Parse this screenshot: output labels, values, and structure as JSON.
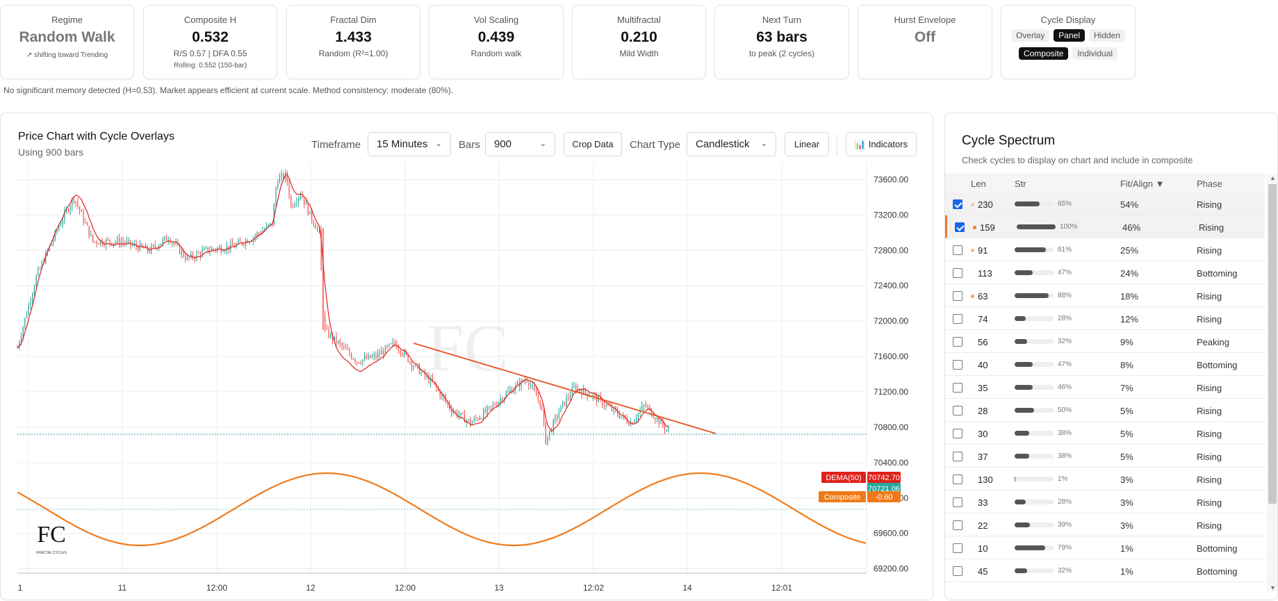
{
  "stats": {
    "regime": {
      "label": "Regime",
      "value": "Random Walk",
      "sub": "↗ shifting toward Trending"
    },
    "composite_h": {
      "label": "Composite H",
      "value": "0.532",
      "sub": "R/S 0.57 | DFA 0.55",
      "sub2": "Rolling: 0.552 (150-bar)"
    },
    "fractal_dim": {
      "label": "Fractal Dim",
      "value": "1.433",
      "sub": "Random (R²=1.00)"
    },
    "vol_scaling": {
      "label": "Vol Scaling",
      "value": "0.439",
      "sub": "Random walk"
    },
    "multifractal": {
      "label": "Multifractal",
      "value": "0.210",
      "sub": "Mild Width"
    },
    "next_turn": {
      "label": "Next Turn",
      "value": "63 bars",
      "sub": "to peak (2 cycles)"
    },
    "hurst_envelope": {
      "label": "Hurst Envelope",
      "value": "Off"
    },
    "cycle_display": {
      "label": "Cycle Display",
      "modes": [
        "Overlay",
        "Panel",
        "Hidden"
      ],
      "active_mode": "Panel",
      "types": [
        "Composite",
        "Individual"
      ],
      "active_type": "Composite"
    }
  },
  "note": "No significant memory detected (H=0.53). Market appears efficient at current scale. Method consistency: moderate (80%).",
  "chart_panel": {
    "title": "Price Chart with Cycle Overlays",
    "subtitle": "Using 900 bars",
    "timeframe_label": "Timeframe",
    "timeframe_value": "15 Minutes",
    "bars_label": "Bars",
    "bars_value": "900",
    "crop_label": "Crop Data",
    "chart_type_label": "Chart Type",
    "chart_type_value": "Candlestick",
    "scale_label": "Linear",
    "indicators_label": "📊 Indicators"
  },
  "chart_data": {
    "type": "candlestick",
    "x_tick_labels": [
      "1",
      "11",
      "12:00",
      "12",
      "12:00",
      "13",
      "12:02",
      "14",
      "12:01"
    ],
    "y_ticks": [
      73600,
      73200,
      72800,
      72400,
      72000,
      71600,
      71200,
      70800,
      70400,
      70000,
      69600,
      69200
    ],
    "y_tick_labels": [
      "73600.00",
      "73200.00",
      "72800.00",
      "72400.00",
      "72000.00",
      "71600.00",
      "71200.00",
      "70800.00",
      "70400.00",
      "70000.00",
      "69600.00",
      "69200.00"
    ],
    "ylim": [
      69150,
      73800
    ],
    "price_anchors": [
      [
        0,
        71700
      ],
      [
        20,
        72500
      ],
      [
        45,
        73100
      ],
      [
        60,
        73400
      ],
      [
        80,
        72900
      ],
      [
        110,
        72900
      ],
      [
        140,
        72800
      ],
      [
        160,
        72950
      ],
      [
        180,
        72700
      ],
      [
        200,
        72800
      ],
      [
        230,
        72850
      ],
      [
        250,
        72950
      ],
      [
        270,
        73100
      ],
      [
        275,
        73600
      ],
      [
        285,
        73650
      ],
      [
        290,
        73300
      ],
      [
        300,
        73450
      ],
      [
        310,
        73200
      ],
      [
        320,
        73000
      ],
      [
        325,
        71900
      ],
      [
        340,
        71750
      ],
      [
        360,
        71550
      ],
      [
        380,
        71600
      ],
      [
        400,
        71750
      ],
      [
        420,
        71500
      ],
      [
        440,
        71300
      ],
      [
        460,
        71000
      ],
      [
        480,
        70850
      ],
      [
        500,
        71000
      ],
      [
        520,
        71200
      ],
      [
        540,
        71350
      ],
      [
        555,
        71050
      ],
      [
        560,
        70650
      ],
      [
        575,
        71000
      ],
      [
        590,
        71250
      ],
      [
        610,
        71150
      ],
      [
        630,
        71000
      ],
      [
        650,
        70850
      ],
      [
        665,
        71050
      ],
      [
        690,
        70750
      ]
    ],
    "dema": {
      "name": "DEMA(50)",
      "value": "70742.70",
      "color": "#e0201a"
    },
    "last_price": {
      "value": "70721.06",
      "color": "#26a69a"
    },
    "trendline": [
      [
        420,
        71750
      ],
      [
        740,
        70730
      ]
    ],
    "composite": {
      "name": "Composite",
      "value": "-0.60",
      "color": "#f07a1a",
      "amplitude": 1,
      "period_bars": 396,
      "phase_offset": 0
    },
    "up_color": "#26a69a",
    "down_color": "#ef5350",
    "watermark_text": "FC",
    "logo_caption": "FRACTAL CYCLES"
  },
  "spectrum": {
    "title": "Cycle Spectrum",
    "subtitle": "Check cycles to display on chart and include in composite",
    "headers": {
      "len": "Len",
      "str": "Str",
      "fit": "Fit/Align ▼",
      "phase": "Phase"
    },
    "rows": [
      {
        "checked": true,
        "dot": "#f5c39a",
        "len": "230",
        "str": 0.65,
        "str_label": "65%",
        "fit": "54%",
        "phase": "Rising",
        "selected": true,
        "accent": false
      },
      {
        "checked": true,
        "dot": "#f07a1a",
        "len": "159",
        "str": 1.0,
        "str_label": "100%",
        "fit": "46%",
        "phase": "Rising",
        "selected": true,
        "accent": true
      },
      {
        "checked": false,
        "dot": "#f5b98a",
        "len": "91",
        "str": 0.81,
        "str_label": "81%",
        "fit": "25%",
        "phase": "Rising"
      },
      {
        "checked": false,
        "dot": "",
        "len": "113",
        "str": 0.47,
        "str_label": "47%",
        "fit": "24%",
        "phase": "Bottoming"
      },
      {
        "checked": false,
        "dot": "#f0a060",
        "len": "63",
        "str": 0.88,
        "str_label": "88%",
        "fit": "18%",
        "phase": "Rising"
      },
      {
        "checked": false,
        "dot": "",
        "len": "74",
        "str": 0.28,
        "str_label": "28%",
        "fit": "12%",
        "phase": "Rising"
      },
      {
        "checked": false,
        "dot": "",
        "len": "56",
        "str": 0.32,
        "str_label": "32%",
        "fit": "9%",
        "phase": "Peaking"
      },
      {
        "checked": false,
        "dot": "",
        "len": "40",
        "str": 0.47,
        "str_label": "47%",
        "fit": "8%",
        "phase": "Bottoming"
      },
      {
        "checked": false,
        "dot": "",
        "len": "35",
        "str": 0.46,
        "str_label": "46%",
        "fit": "7%",
        "phase": "Rising"
      },
      {
        "checked": false,
        "dot": "",
        "len": "28",
        "str": 0.5,
        "str_label": "50%",
        "fit": "5%",
        "phase": "Rising"
      },
      {
        "checked": false,
        "dot": "",
        "len": "30",
        "str": 0.38,
        "str_label": "38%",
        "fit": "5%",
        "phase": "Rising"
      },
      {
        "checked": false,
        "dot": "",
        "len": "37",
        "str": 0.38,
        "str_label": "38%",
        "fit": "5%",
        "phase": "Rising"
      },
      {
        "checked": false,
        "dot": "",
        "len": "130",
        "str": 0.01,
        "str_label": "1%",
        "fit": "3%",
        "phase": "Rising"
      },
      {
        "checked": false,
        "dot": "",
        "len": "33",
        "str": 0.28,
        "str_label": "28%",
        "fit": "3%",
        "phase": "Rising"
      },
      {
        "checked": false,
        "dot": "",
        "len": "22",
        "str": 0.39,
        "str_label": "39%",
        "fit": "3%",
        "phase": "Rising"
      },
      {
        "checked": false,
        "dot": "",
        "len": "10",
        "str": 0.79,
        "str_label": "79%",
        "fit": "1%",
        "phase": "Bottoming"
      },
      {
        "checked": false,
        "dot": "",
        "len": "45",
        "str": 0.32,
        "str_label": "32%",
        "fit": "1%",
        "phase": "Bottoming"
      }
    ]
  }
}
